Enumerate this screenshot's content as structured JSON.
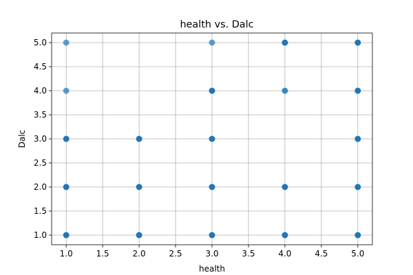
{
  "chart_data": {
    "type": "scatter",
    "title": "health vs. Dalc",
    "xlabel": "health",
    "ylabel": "Dalc",
    "xlim": [
      0.8,
      5.2
    ],
    "ylim": [
      0.8,
      5.2
    ],
    "xticks": [
      1.0,
      1.5,
      2.0,
      2.5,
      3.0,
      3.5,
      4.0,
      4.5,
      5.0
    ],
    "yticks": [
      1.0,
      1.5,
      2.0,
      2.5,
      3.0,
      3.5,
      4.0,
      4.5,
      5.0
    ],
    "xtick_labels": [
      "1.0",
      "1.5",
      "2.0",
      "2.5",
      "3.0",
      "3.5",
      "4.0",
      "4.5",
      "5.0"
    ],
    "ytick_labels": [
      "1.0",
      "1.5",
      "2.0",
      "2.5",
      "3.0",
      "3.5",
      "4.0",
      "4.5",
      "5.0"
    ],
    "grid": true,
    "point_color": "#1f77b4",
    "points": [
      {
        "x": 1,
        "y": 5,
        "weight": 0.7
      },
      {
        "x": 1,
        "y": 4,
        "weight": 0.7
      },
      {
        "x": 1,
        "y": 3,
        "weight": 1
      },
      {
        "x": 1,
        "y": 2,
        "weight": 1
      },
      {
        "x": 1,
        "y": 1,
        "weight": 1
      },
      {
        "x": 2,
        "y": 3,
        "weight": 1
      },
      {
        "x": 2,
        "y": 2,
        "weight": 1
      },
      {
        "x": 2,
        "y": 1,
        "weight": 1
      },
      {
        "x": 3,
        "y": 5,
        "weight": 0.7
      },
      {
        "x": 3,
        "y": 4,
        "weight": 1
      },
      {
        "x": 3,
        "y": 3,
        "weight": 1
      },
      {
        "x": 3,
        "y": 2,
        "weight": 1
      },
      {
        "x": 3,
        "y": 1,
        "weight": 1
      },
      {
        "x": 4,
        "y": 5,
        "weight": 1
      },
      {
        "x": 4,
        "y": 4,
        "weight": 0.85
      },
      {
        "x": 4,
        "y": 2,
        "weight": 1
      },
      {
        "x": 4,
        "y": 1,
        "weight": 1
      },
      {
        "x": 5,
        "y": 5,
        "weight": 1
      },
      {
        "x": 5,
        "y": 4,
        "weight": 1
      },
      {
        "x": 5,
        "y": 3,
        "weight": 1
      },
      {
        "x": 5,
        "y": 2,
        "weight": 1
      },
      {
        "x": 5,
        "y": 1,
        "weight": 1
      }
    ]
  }
}
